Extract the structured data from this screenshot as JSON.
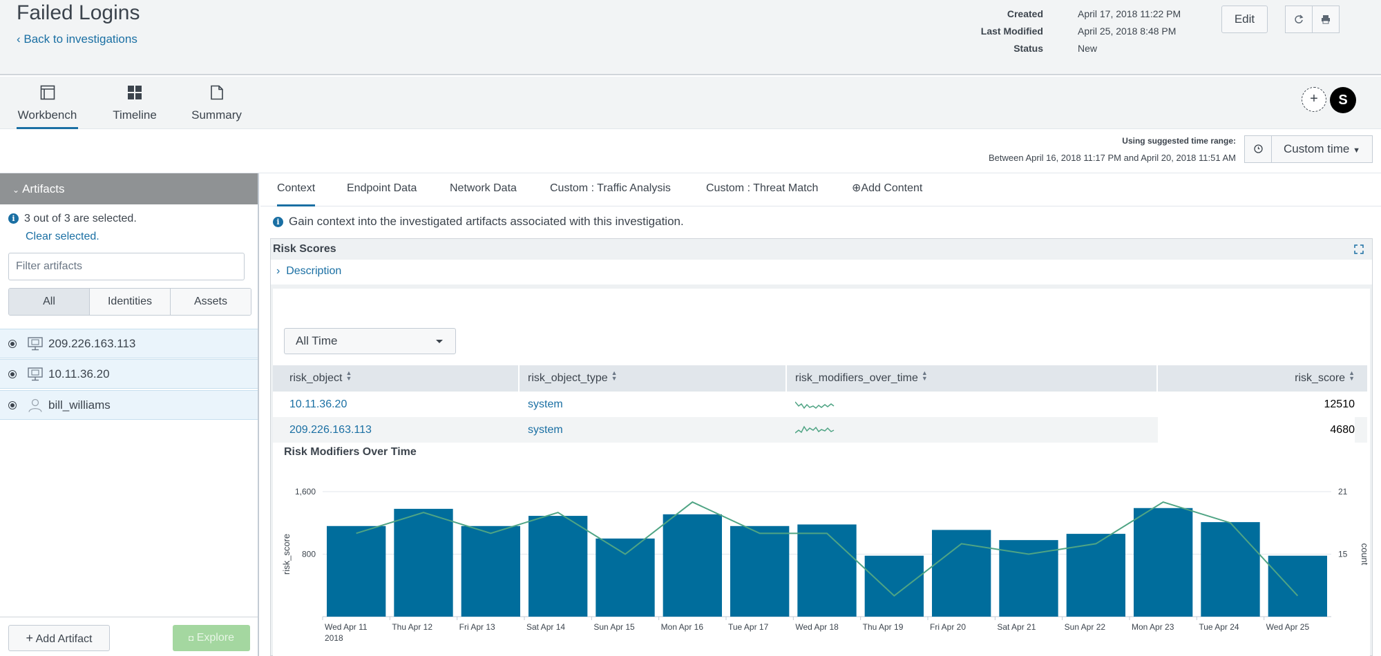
{
  "header": {
    "title": "Failed Logins",
    "back_link": "Back to investigations",
    "meta": [
      {
        "key": "Created",
        "value": "April 17, 2018 11:22 PM"
      },
      {
        "key": "Last Modified",
        "value": "April 25, 2018 8:48 PM"
      },
      {
        "key": "Status",
        "value": "New"
      }
    ],
    "edit_label": "Edit",
    "refresh_icon": "refresh-icon",
    "print_icon": "print-icon"
  },
  "nav": {
    "tabs": [
      {
        "label": "Workbench",
        "icon": "workbench-icon",
        "active": true
      },
      {
        "label": "Timeline",
        "icon": "timeline-icon",
        "active": false
      },
      {
        "label": "Summary",
        "icon": "summary-icon",
        "active": false
      }
    ],
    "add_collaborator": "+",
    "avatar_letter": "S"
  },
  "time_range": {
    "label": "Using suggested time range:",
    "range": "Between April 16, 2018 11:17 PM and April 20, 2018 11:51 AM",
    "picker_label": "Custom time"
  },
  "artifacts": {
    "header": "Artifacts",
    "selected_text": "3 out of 3 are selected.",
    "clear_label": "Clear selected.",
    "filter_placeholder": "Filter artifacts",
    "segments": [
      "All",
      "Identities",
      "Assets"
    ],
    "items": [
      {
        "label": "209.226.163.113",
        "icon": "monitor-icon"
      },
      {
        "label": "10.11.36.20",
        "icon": "monitor-icon"
      },
      {
        "label": "bill_williams",
        "icon": "user-icon"
      }
    ],
    "add_label": "Add Artifact",
    "explore_label": "Explore"
  },
  "subtabs": [
    "Context",
    "Endpoint Data",
    "Network Data",
    "Custom : Traffic Analysis",
    "Custom : Threat Match",
    "Add Content"
  ],
  "context_info": "Gain context into the investigated artifacts associated with this investigation.",
  "risk": {
    "title": "Risk Scores",
    "description_label": "Description",
    "time_picker": "All Time",
    "columns": [
      "risk_object",
      "risk_object_type",
      "risk_modifiers_over_time",
      "risk_score"
    ],
    "rows": [
      {
        "risk_object": "10.11.36.20",
        "risk_object_type": "system",
        "risk_score": "12510"
      },
      {
        "risk_object": "209.226.163.113",
        "risk_object_type": "system",
        "risk_score": "4680"
      }
    ]
  },
  "chart_data": {
    "type": "bar",
    "title": "Risk Modifiers Over Time",
    "categories": [
      "Wed Apr 11",
      "Thu Apr 12",
      "Fri Apr 13",
      "Sat Apr 14",
      "Sun Apr 15",
      "Mon Apr 16",
      "Tue Apr 17",
      "Wed Apr 18",
      "Thu Apr 19",
      "Fri Apr 20",
      "Sat Apr 21",
      "Sun Apr 22",
      "Mon Apr 23",
      "Tue Apr 24",
      "Wed Apr 25"
    ],
    "year_label": "2018",
    "series": [
      {
        "name": "risk_score",
        "type": "bar",
        "axis": "left",
        "color": "#006d9c",
        "values": [
          1160,
          1380,
          1160,
          1290,
          1000,
          1310,
          1160,
          1180,
          780,
          1110,
          980,
          1060,
          1390,
          1210,
          780
        ]
      },
      {
        "name": "count",
        "type": "line",
        "axis": "right",
        "color": "#4fa484",
        "values": [
          17,
          19,
          17,
          19,
          15,
          20,
          17,
          17,
          11,
          16,
          15,
          16,
          20,
          18,
          11
        ]
      }
    ],
    "ylabel": "risk_score",
    "y2label": "count",
    "ylim": [
      0,
      1600
    ],
    "y2lim": [
      9,
      21
    ],
    "yticks": [
      "1,600",
      "800"
    ],
    "y2ticks": [
      "21",
      "15"
    ]
  }
}
